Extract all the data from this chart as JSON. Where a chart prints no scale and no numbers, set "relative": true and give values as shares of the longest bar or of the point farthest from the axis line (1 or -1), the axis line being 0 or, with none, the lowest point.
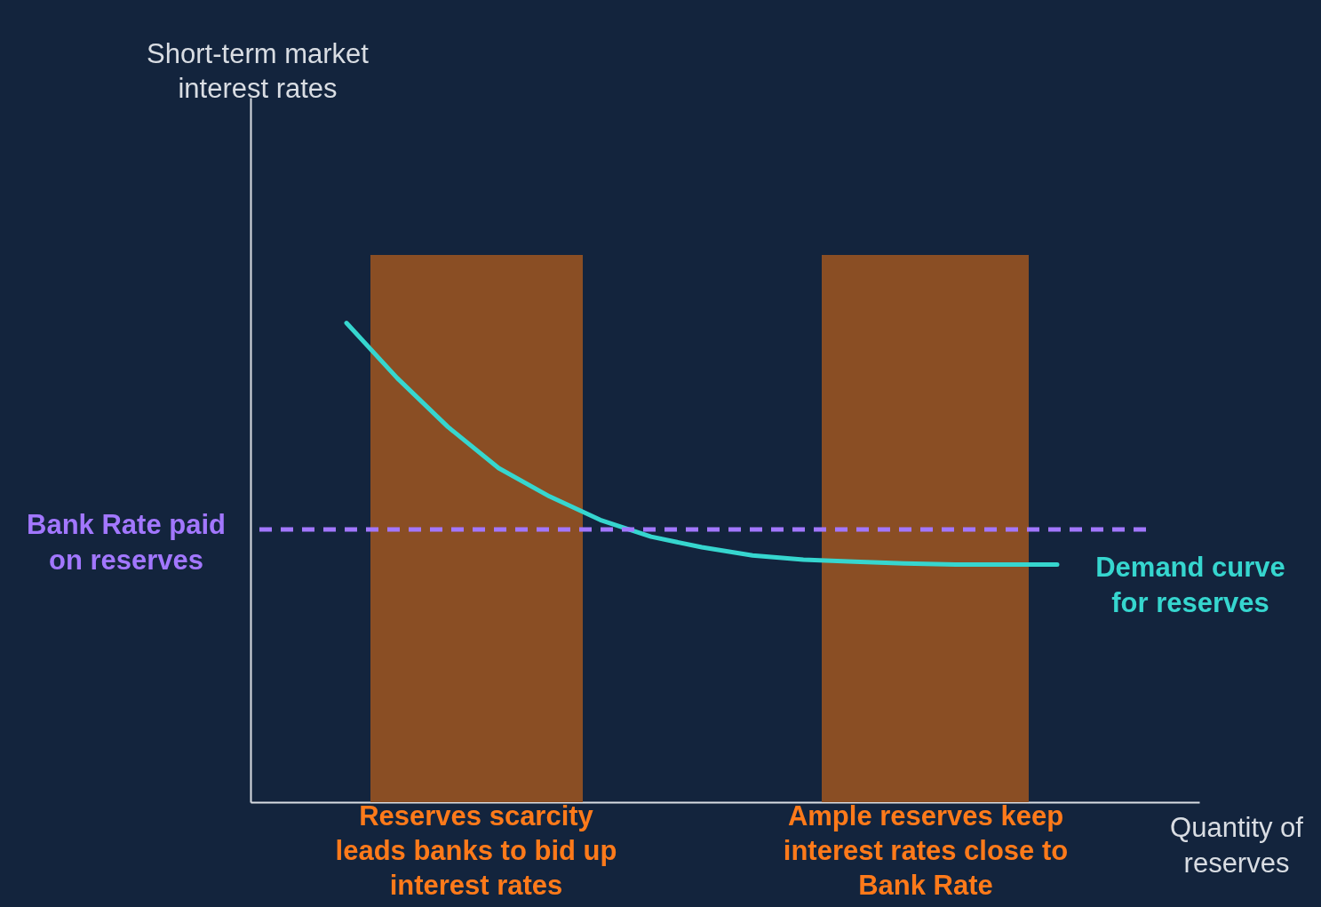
{
  "chart_data": {
    "type": "line",
    "relative": true,
    "xlabel": "Quantity of\nreserves",
    "marker": "none",
    "categories": [
      null,
      null,
      null,
      null,
      null,
      null,
      null,
      null,
      null,
      null,
      null,
      null,
      null,
      null,
      null
    ],
    "series": [
      {
        "name": "Demand curve\nfor reserves",
        "color": "#36d6cf",
        "line_style": "solid",
        "values": [
          1.0,
          0.885,
          0.783,
          0.697,
          0.638,
          0.589,
          0.554,
          0.532,
          0.515,
          0.506,
          0.502,
          0.498,
          0.496,
          0.496,
          0.496
        ]
      }
    ],
    "ref_lines": [
      {
        "axis": "y",
        "value": 0.569,
        "label": "Bank Rate paid\non reserves",
        "color": "#a277ff",
        "line_style": "dashed"
      }
    ],
    "annotations": [
      "Short-term market\ninterest rates",
      "Reserves scarcity\nleads banks to bid up\ninterest rates",
      "Ample reserves keep\ninterest rates close to\nBank Rate"
    ]
  }
}
